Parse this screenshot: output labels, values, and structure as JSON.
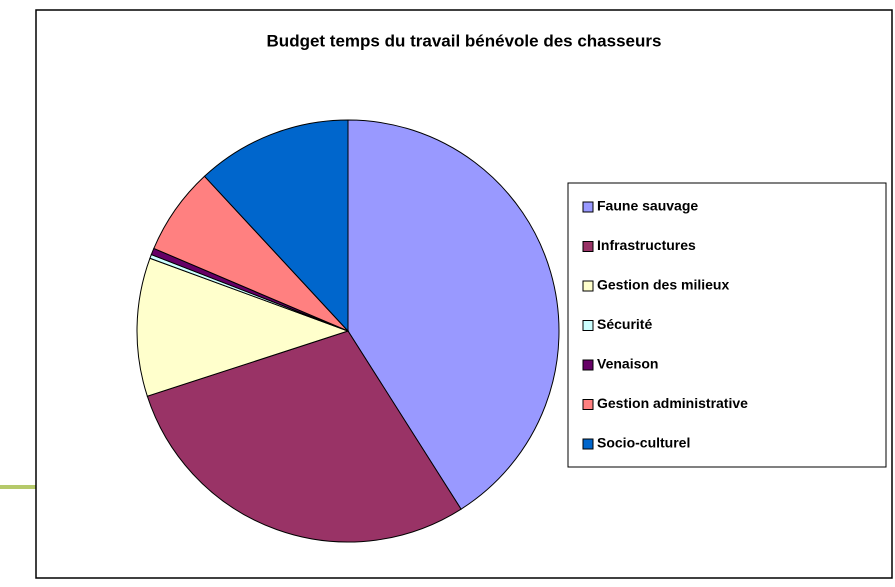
{
  "chart_data": {
    "type": "pie",
    "title": "Budget temps du travail bénévole des chasseurs",
    "categories": [
      "Faune sauvage",
      "Infrastructures",
      "Gestion des milieux",
      "Sécurité",
      "Venaison",
      "Gestion administrative",
      "Socio-culturel"
    ],
    "values": [
      41,
      29,
      10.6,
      0.3,
      0.5,
      6.7,
      11.9
    ],
    "colors": [
      "#9999ff",
      "#993366",
      "#ffffcc",
      "#ccffff",
      "#660066",
      "#ff8080",
      "#0066cc"
    ],
    "legend": "right"
  }
}
